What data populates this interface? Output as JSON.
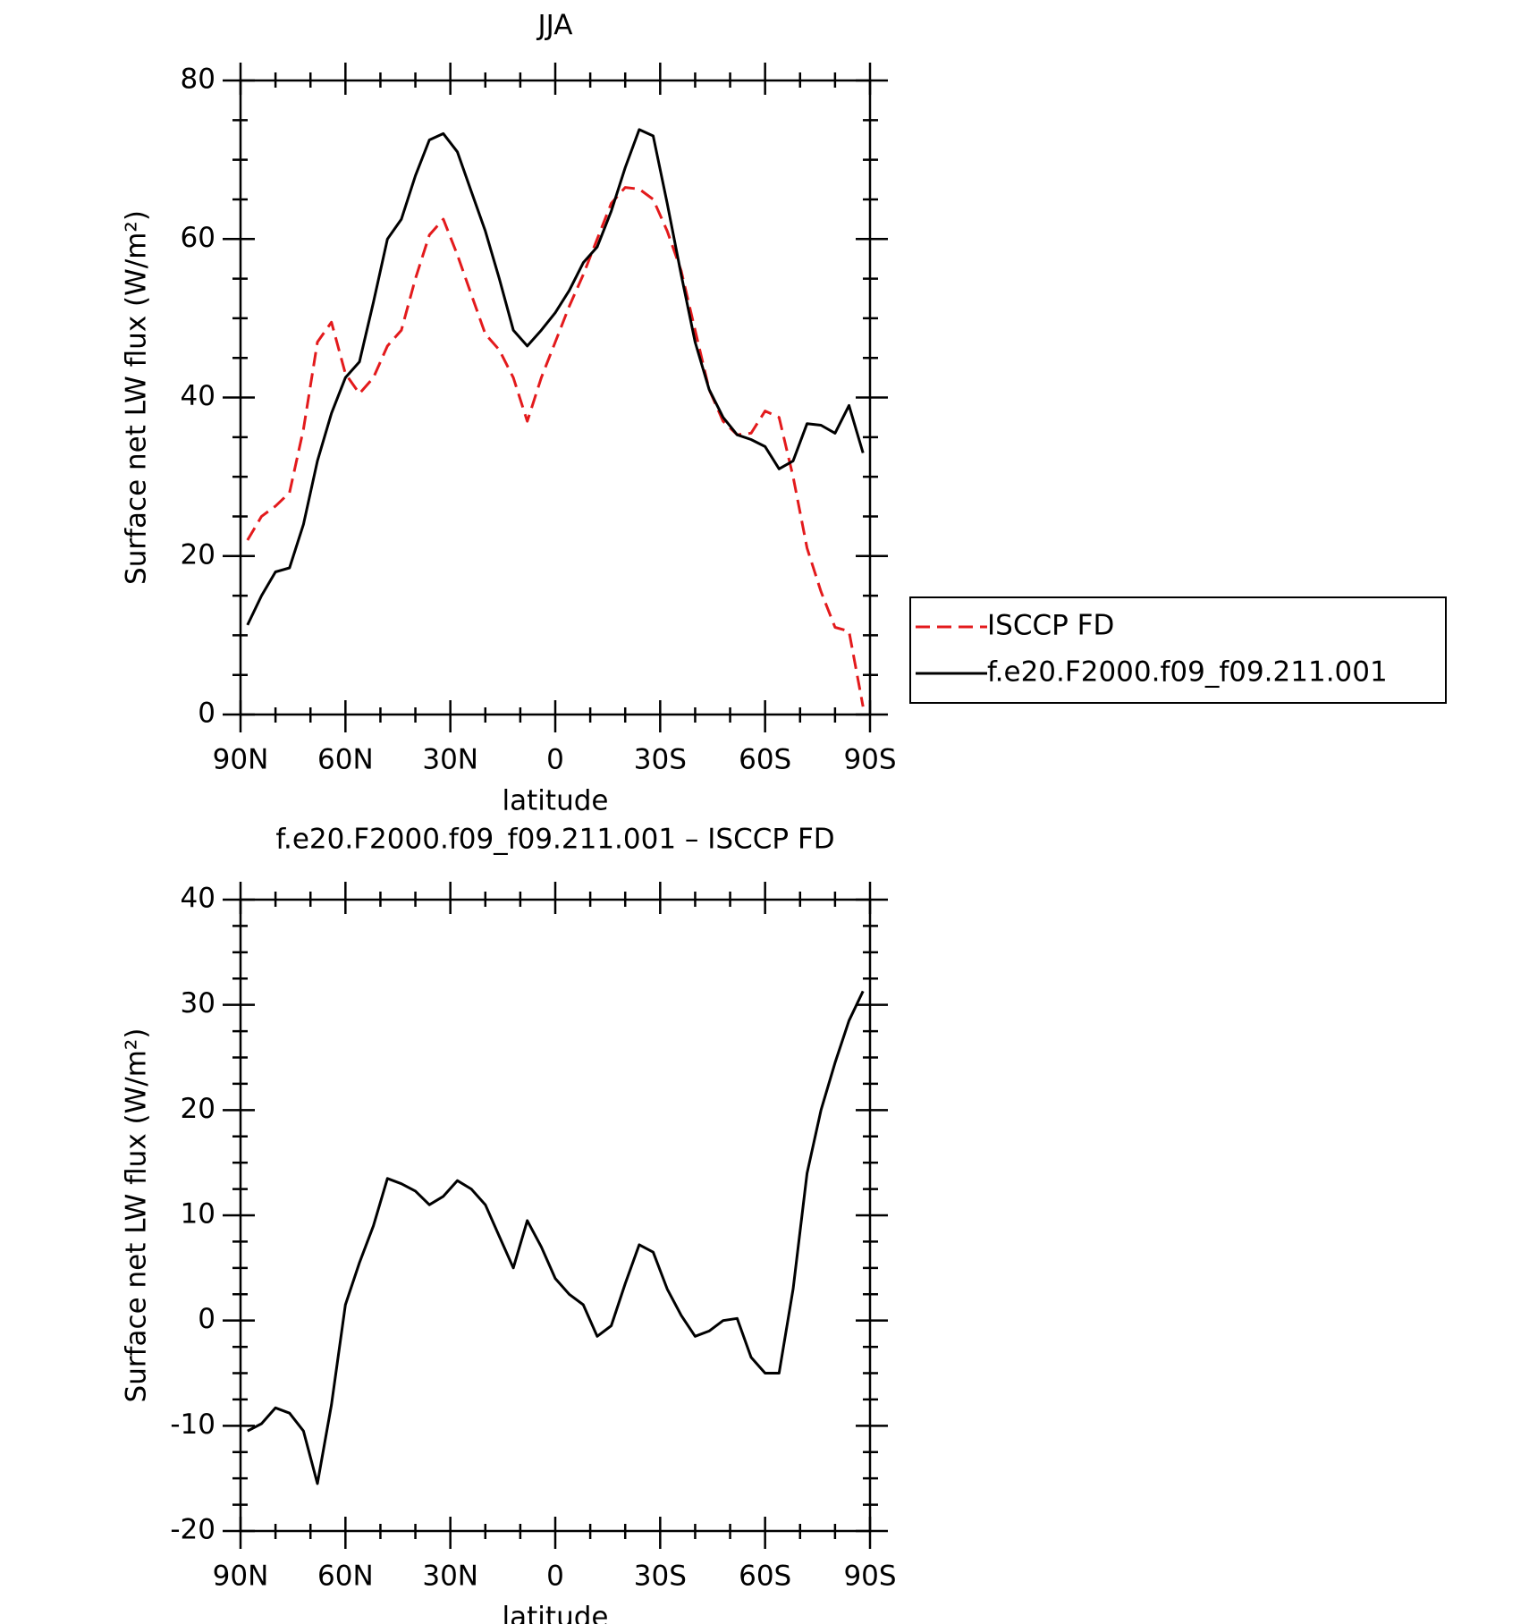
{
  "chart_data": [
    {
      "type": "line",
      "title": "JJA",
      "xlabel": "latitude",
      "ylabel": "Surface net LW flux (W/m²)",
      "x": [
        88,
        84,
        80,
        76,
        72,
        68,
        64,
        60,
        56,
        52,
        48,
        44,
        40,
        36,
        32,
        28,
        24,
        20,
        16,
        12,
        8,
        4,
        0,
        -4,
        -8,
        -12,
        -16,
        -20,
        -24,
        -28,
        -32,
        -36,
        -40,
        -44,
        -48,
        -52,
        -56,
        -60,
        -64,
        -68,
        -72,
        -76,
        -80,
        -84,
        -88
      ],
      "xlim": [
        90,
        -90
      ],
      "xticks": [
        {
          "value": 90,
          "label": "90N"
        },
        {
          "value": 60,
          "label": "60N"
        },
        {
          "value": 30,
          "label": "30N"
        },
        0,
        {
          "value": -30,
          "label": "30S"
        },
        {
          "value": -60,
          "label": "60S"
        },
        {
          "value": -90,
          "label": "90S"
        }
      ],
      "ylim": [
        0,
        80
      ],
      "yticks": [
        0,
        20,
        40,
        60,
        80
      ],
      "legend": "right",
      "series": [
        {
          "name": "ISCCP FD",
          "color": "#e31a1c",
          "dash": true,
          "values": [
            22,
            25,
            26.3,
            28,
            36,
            47,
            49.5,
            43,
            40.5,
            42.5,
            46.5,
            48.5,
            55,
            60.5,
            62.5,
            58,
            53,
            48,
            46,
            42.5,
            37,
            42.5,
            47,
            51.5,
            55.5,
            60,
            64.5,
            66.5,
            66.3,
            65,
            61,
            56,
            48.5,
            41,
            37,
            35.3,
            35.5,
            38.3,
            37.5,
            30,
            21,
            15.5,
            11,
            10.5,
            1
          ]
        },
        {
          "name": "f.e20.F2000.f09_f09.211.001",
          "color": "#000000",
          "dash": false,
          "values": [
            11.3,
            15,
            18,
            18.5,
            24,
            32,
            38,
            42.5,
            44.5,
            52,
            60,
            62.5,
            68,
            72.5,
            73.3,
            71,
            66,
            61,
            55,
            48.5,
            46.5,
            48.5,
            50.7,
            53.5,
            57,
            59,
            63.5,
            69,
            73.8,
            73,
            64.5,
            55.5,
            47,
            41,
            37.5,
            35.3,
            34.7,
            33.8,
            31,
            32,
            36.7,
            36.5,
            35.5,
            39,
            33
          ]
        }
      ]
    },
    {
      "type": "line",
      "title": "f.e20.F2000.f09_f09.211.001 – ISCCP FD",
      "xlabel": "latitude",
      "ylabel": "Surface net LW flux (W/m²)",
      "x": [
        88,
        84,
        80,
        76,
        72,
        68,
        64,
        60,
        56,
        52,
        48,
        44,
        40,
        36,
        32,
        28,
        24,
        20,
        16,
        12,
        8,
        4,
        0,
        -4,
        -8,
        -12,
        -16,
        -20,
        -24,
        -28,
        -32,
        -36,
        -40,
        -44,
        -48,
        -52,
        -56,
        -60,
        -64,
        -68,
        -72,
        -76,
        -80,
        -84,
        -88
      ],
      "xlim": [
        90,
        -90
      ],
      "xticks": [
        {
          "value": 90,
          "label": "90N"
        },
        {
          "value": 60,
          "label": "60N"
        },
        {
          "value": 30,
          "label": "30N"
        },
        0,
        {
          "value": -30,
          "label": "30S"
        },
        {
          "value": -60,
          "label": "60S"
        },
        {
          "value": -90,
          "label": "90S"
        }
      ],
      "ylim": [
        -20,
        40
      ],
      "yticks": [
        -20,
        -10,
        0,
        10,
        20,
        30,
        40
      ],
      "series": [
        {
          "color": "#000000",
          "dash": false,
          "values": [
            -10.5,
            -9.8,
            -8.3,
            -8.8,
            -10.5,
            -15.5,
            -8,
            1.5,
            5.5,
            9,
            13.5,
            13,
            12.3,
            11,
            11.8,
            13.3,
            12.5,
            11,
            8,
            5,
            9.5,
            7,
            4,
            2.5,
            1.5,
            -1.5,
            -0.5,
            3.5,
            7.2,
            6.5,
            3,
            0.5,
            -1.5,
            -1,
            0,
            0.2,
            -3.5,
            -5,
            -5,
            3,
            14,
            20,
            24.5,
            28.5,
            31.3
          ]
        }
      ]
    }
  ]
}
